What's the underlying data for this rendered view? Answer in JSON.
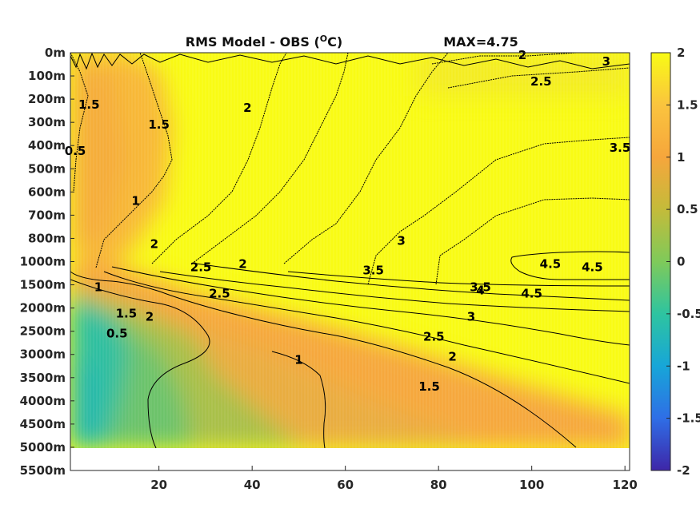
{
  "chart_data": {
    "type": "heatmap",
    "title": "RMS Model - OBS (",
    "title_unit_sup": "O",
    "title_unit": "C)",
    "annotation": "MAX=4.75",
    "x_ticks": [
      20,
      40,
      60,
      80,
      100,
      120
    ],
    "x_range": [
      1,
      121
    ],
    "y_tick_labels": [
      "0m",
      "100m",
      "200m",
      "300m",
      "400m",
      "500m",
      "600m",
      "700m",
      "800m",
      "1000m",
      "1500m",
      "2000m",
      "2500m",
      "3000m",
      "3500m",
      "4000m",
      "4500m",
      "5000m",
      "5500m"
    ],
    "colorbar": {
      "range": [
        -2,
        2
      ],
      "ticks": [
        2,
        1.5,
        1,
        0.5,
        0,
        -0.5,
        -1,
        -1.5,
        -2
      ],
      "tick_labels": [
        "2",
        "1.5",
        "1",
        "0.5",
        "0",
        "-0.5",
        "-1",
        "-1.5",
        "-2"
      ],
      "colors": [
        "#3e26a8",
        "#2f6ee6",
        "#17a6d8",
        "#2ec4a0",
        "#7fca5a",
        "#c4bb3a",
        "#f6a63c",
        "#fac43e",
        "#f9fb15"
      ]
    },
    "contour_labels": [
      {
        "text": "1",
        "x": 7,
        "y": "1500m"
      },
      {
        "text": "1.5",
        "x": 13,
        "y": "2000m"
      },
      {
        "text": "2",
        "x": 18,
        "y": "2000m"
      },
      {
        "text": "0.5",
        "x": 11,
        "y": "2500m"
      },
      {
        "text": "1",
        "x": 50,
        "y": "3000m"
      },
      {
        "text": "1.5",
        "x": 78,
        "y": "3500m"
      },
      {
        "text": "2",
        "x": 83,
        "y": "3000m"
      },
      {
        "text": "2.5",
        "x": 79,
        "y": "2500m"
      },
      {
        "text": "3",
        "x": 87,
        "y": "2000m"
      },
      {
        "text": "3.5",
        "x": 89,
        "y": "1500m"
      },
      {
        "text": "4",
        "x": 89,
        "y": "1500m"
      },
      {
        "text": "4.5",
        "x": 100,
        "y": "1500m"
      },
      {
        "text": "4.5",
        "x": 104,
        "y": "1000m"
      },
      {
        "text": "4.5",
        "x": 113,
        "y": "1000m"
      },
      {
        "text": "2.5",
        "x": 33,
        "y": "1500m"
      },
      {
        "text": "2",
        "x": 38,
        "y": "1000m"
      },
      {
        "text": "2.5",
        "x": 29,
        "y": "1000m"
      },
      {
        "text": "3.5",
        "x": 66,
        "y": "1000m"
      },
      {
        "text": "3",
        "x": 72,
        "y": "800m"
      },
      {
        "text": "2",
        "x": 19,
        "y": "800m"
      },
      {
        "text": "1",
        "x": 15,
        "y": "600m"
      },
      {
        "text": "1.5",
        "x": 20,
        "y": "300m"
      },
      {
        "text": "1.5",
        "x": 5,
        "y": "200m"
      },
      {
        "text": "2",
        "x": 39,
        "y": "200m"
      },
      {
        "text": "2",
        "x": 98,
        "y": "0m"
      },
      {
        "text": "2.5",
        "x": 102,
        "y": "100m"
      },
      {
        "text": "3",
        "x": 116,
        "y": "0m"
      },
      {
        "text": "3.5",
        "x": 121,
        "y": "400m"
      },
      {
        "text": "0.5",
        "x": 1,
        "y": "400m"
      }
    ]
  }
}
